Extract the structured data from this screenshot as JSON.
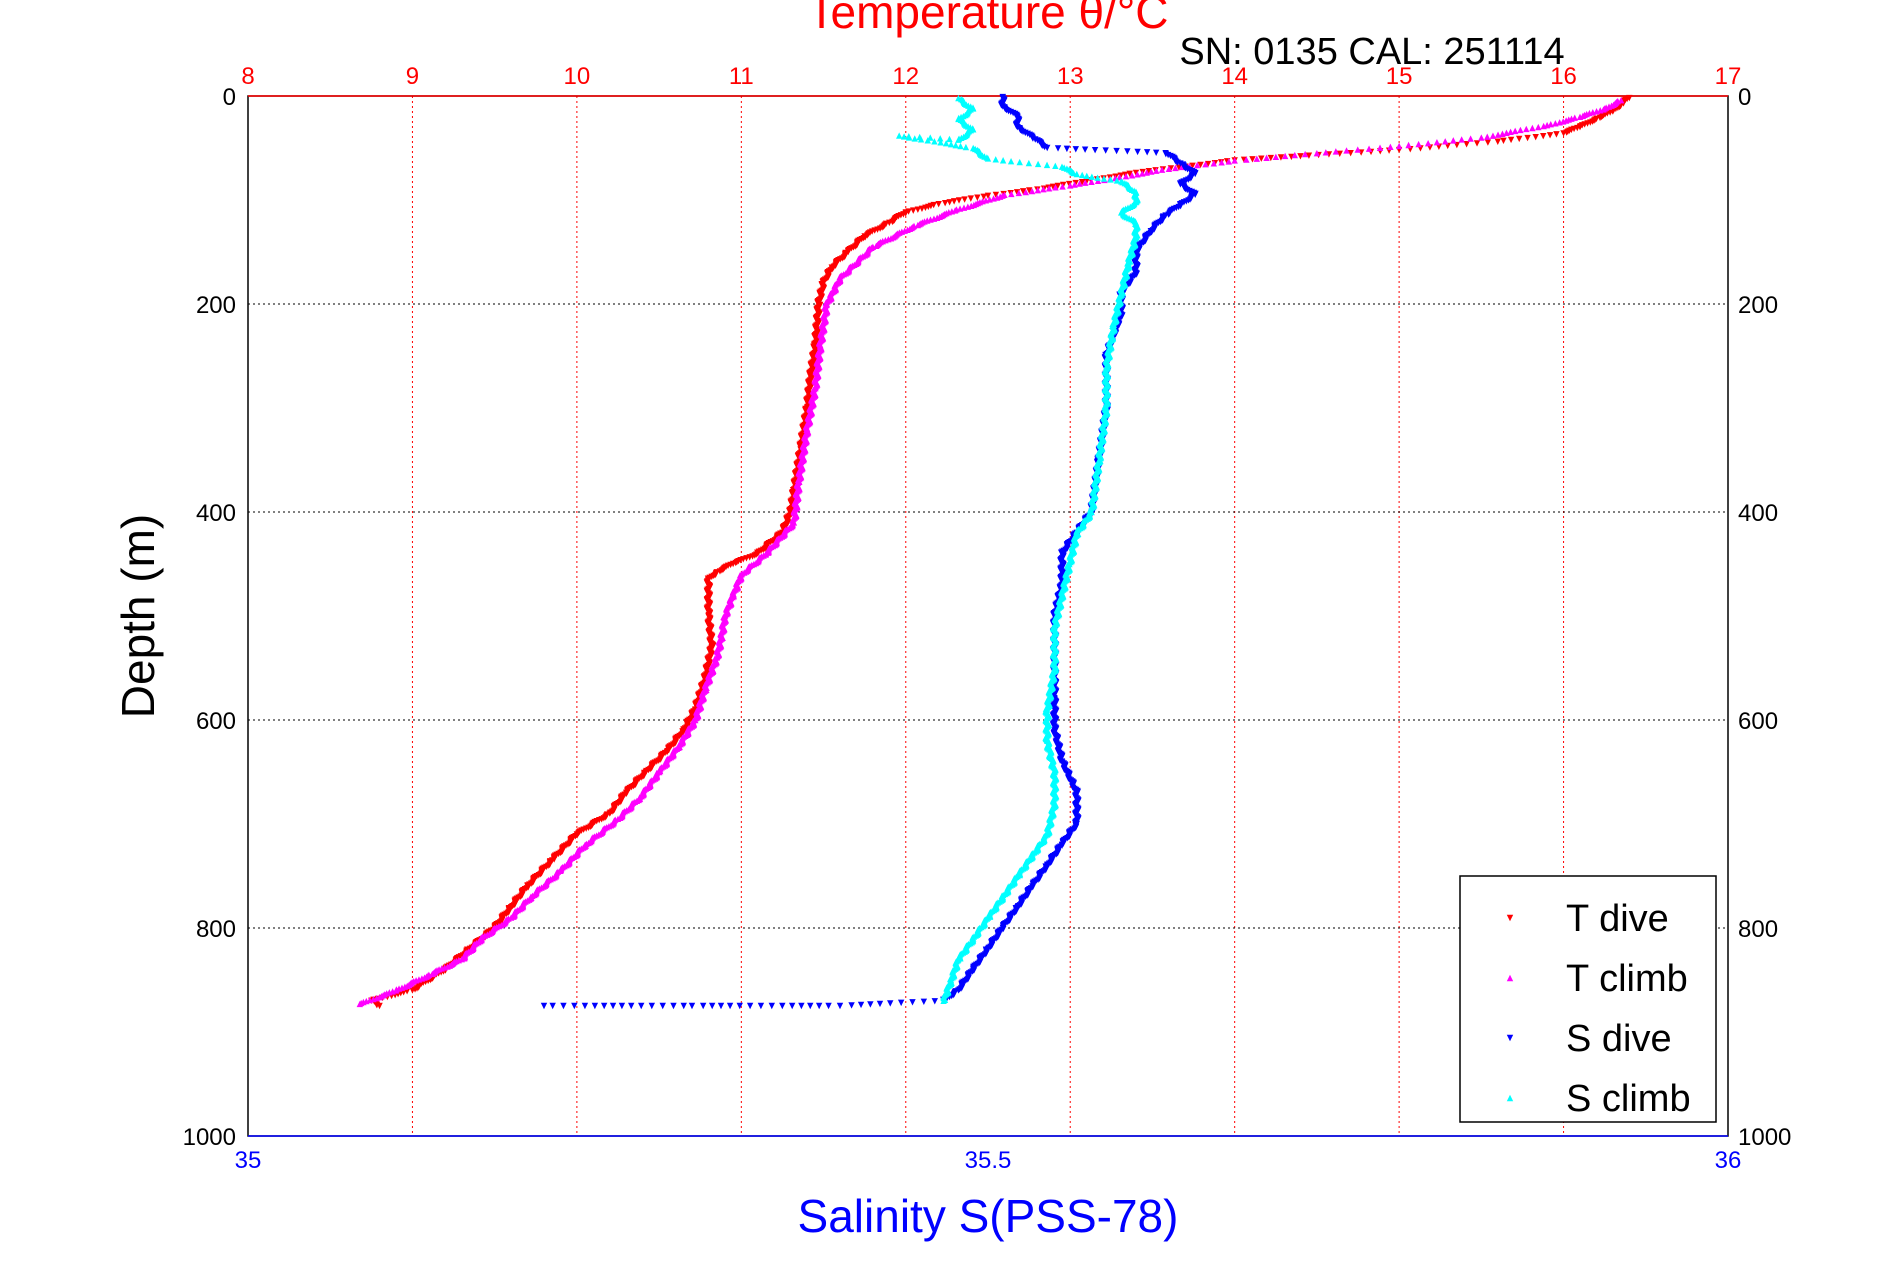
{
  "chart_data": {
    "type": "scatter",
    "title": "Temperature θ/°C",
    "subtitle": "SN: 0135  CAL: 251114",
    "ylabel": "Depth (m)",
    "xlabel": "Salinity S(PSS-78)",
    "ylim": [
      0,
      1000
    ],
    "y_inverted": true,
    "temperature_axis": {
      "position": "top",
      "range": [
        8,
        17
      ],
      "ticks": [
        "8",
        "9",
        "10",
        "11",
        "12",
        "13",
        "14",
        "15",
        "16",
        "17"
      ],
      "color": "#ff0000"
    },
    "salinity_axis": {
      "position": "bottom",
      "range": [
        35,
        36
      ],
      "ticks": [
        "35",
        "35.5",
        "36"
      ],
      "color": "#0000ff"
    },
    "depth_ticks": [
      "0",
      "200",
      "400",
      "600",
      "800",
      "1000"
    ],
    "grid": "vertical lines at temperature ticks, horizontal lines at depth ticks (dotted)",
    "legend_position": "bottom-right",
    "series": [
      {
        "name": "T dive",
        "axis": "temperature",
        "marker": "triangle-down",
        "color": "#ff0000",
        "points": [
          [
            16.4,
            2
          ],
          [
            16.35,
            8
          ],
          [
            16.3,
            15
          ],
          [
            16.2,
            22
          ],
          [
            16.1,
            30
          ],
          [
            16.0,
            36
          ],
          [
            15.6,
            44
          ],
          [
            15.0,
            52
          ],
          [
            14.4,
            58
          ],
          [
            14.0,
            62
          ],
          [
            13.7,
            68
          ],
          [
            13.4,
            74
          ],
          [
            13.1,
            82
          ],
          [
            12.8,
            90
          ],
          [
            12.5,
            96
          ],
          [
            12.2,
            104
          ],
          [
            12.0,
            112
          ],
          [
            11.9,
            122
          ],
          [
            11.75,
            135
          ],
          [
            11.65,
            150
          ],
          [
            11.55,
            165
          ],
          [
            11.5,
            180
          ],
          [
            11.47,
            200
          ],
          [
            11.45,
            240
          ],
          [
            11.42,
            270
          ],
          [
            11.4,
            300
          ],
          [
            11.36,
            340
          ],
          [
            11.32,
            380
          ],
          [
            11.3,
            400
          ],
          [
            11.25,
            420
          ],
          [
            11.1,
            440
          ],
          [
            10.95,
            450
          ],
          [
            10.85,
            458
          ],
          [
            10.8,
            465
          ],
          [
            10.8,
            500
          ],
          [
            10.82,
            530
          ],
          [
            10.78,
            560
          ],
          [
            10.72,
            590
          ],
          [
            10.65,
            610
          ],
          [
            10.55,
            630
          ],
          [
            10.42,
            650
          ],
          [
            10.3,
            670
          ],
          [
            10.2,
            690
          ],
          [
            10.0,
            710
          ],
          [
            9.85,
            735
          ],
          [
            9.7,
            760
          ],
          [
            9.6,
            780
          ],
          [
            9.5,
            800
          ],
          [
            9.35,
            820
          ],
          [
            9.2,
            840
          ],
          [
            9.0,
            860
          ],
          [
            8.75,
            870
          ],
          [
            8.8,
            875
          ]
        ]
      },
      {
        "name": "T climb",
        "axis": "temperature",
        "marker": "triangle-up",
        "color": "#ff00ff",
        "points": [
          [
            16.35,
            4
          ],
          [
            16.25,
            12
          ],
          [
            16.1,
            20
          ],
          [
            15.9,
            28
          ],
          [
            15.5,
            40
          ],
          [
            15.0,
            48
          ],
          [
            14.5,
            55
          ],
          [
            14.0,
            62
          ],
          [
            13.6,
            70
          ],
          [
            13.3,
            78
          ],
          [
            13.0,
            86
          ],
          [
            12.6,
            95
          ],
          [
            12.3,
            110
          ],
          [
            12.05,
            125
          ],
          [
            11.8,
            145
          ],
          [
            11.6,
            175
          ],
          [
            11.52,
            200
          ],
          [
            11.48,
            240
          ],
          [
            11.45,
            280
          ],
          [
            11.4,
            320
          ],
          [
            11.35,
            370
          ],
          [
            11.32,
            410
          ],
          [
            11.15,
            440
          ],
          [
            11.0,
            460
          ],
          [
            10.95,
            480
          ],
          [
            10.9,
            500
          ],
          [
            10.88,
            520
          ],
          [
            10.85,
            540
          ],
          [
            10.78,
            570
          ],
          [
            10.72,
            600
          ],
          [
            10.62,
            625
          ],
          [
            10.5,
            650
          ],
          [
            10.38,
            675
          ],
          [
            10.25,
            695
          ],
          [
            10.05,
            720
          ],
          [
            9.9,
            745
          ],
          [
            9.72,
            770
          ],
          [
            9.6,
            790
          ],
          [
            9.42,
            810
          ],
          [
            9.3,
            830
          ],
          [
            9.1,
            845
          ],
          [
            8.9,
            860
          ],
          [
            8.68,
            873
          ]
        ]
      },
      {
        "name": "S dive",
        "axis": "salinity",
        "marker": "triangle-down",
        "color": "#0000ff",
        "points": [
          [
            35.51,
            1
          ],
          [
            35.51,
            10
          ],
          [
            35.52,
            20
          ],
          [
            35.52,
            30
          ],
          [
            35.53,
            40
          ],
          [
            35.54,
            50
          ],
          [
            35.62,
            55
          ],
          [
            35.63,
            65
          ],
          [
            35.64,
            75
          ],
          [
            35.63,
            85
          ],
          [
            35.64,
            95
          ],
          [
            35.63,
            105
          ],
          [
            35.62,
            115
          ],
          [
            35.61,
            130
          ],
          [
            35.6,
            150
          ],
          [
            35.6,
            170
          ],
          [
            35.59,
            190
          ],
          [
            35.59,
            210
          ],
          [
            35.58,
            250
          ],
          [
            35.58,
            300
          ],
          [
            35.575,
            350
          ],
          [
            35.57,
            400
          ],
          [
            35.56,
            420
          ],
          [
            35.55,
            440
          ],
          [
            35.55,
            470
          ],
          [
            35.545,
            500
          ],
          [
            35.545,
            540
          ],
          [
            35.545,
            580
          ],
          [
            35.545,
            610
          ],
          [
            35.55,
            640
          ],
          [
            35.56,
            670
          ],
          [
            35.56,
            700
          ],
          [
            35.55,
            720
          ],
          [
            35.54,
            740
          ],
          [
            35.53,
            760
          ],
          [
            35.52,
            780
          ],
          [
            35.51,
            800
          ],
          [
            35.5,
            820
          ],
          [
            35.49,
            840
          ],
          [
            35.48,
            860
          ],
          [
            35.47,
            870
          ],
          [
            35.4,
            875
          ],
          [
            35.3,
            875
          ],
          [
            35.2,
            875
          ]
        ]
      },
      {
        "name": "S climb",
        "axis": "salinity",
        "marker": "triangle-up",
        "color": "#00ffff",
        "points": [
          [
            35.48,
            2
          ],
          [
            35.49,
            12
          ],
          [
            35.48,
            22
          ],
          [
            35.49,
            32
          ],
          [
            35.48,
            42
          ],
          [
            35.44,
            38
          ],
          [
            35.49,
            50
          ],
          [
            35.5,
            60
          ],
          [
            35.55,
            68
          ],
          [
            35.56,
            75
          ],
          [
            35.59,
            82
          ],
          [
            35.6,
            92
          ],
          [
            35.6,
            102
          ],
          [
            35.59,
            112
          ],
          [
            35.6,
            122
          ],
          [
            35.6,
            135
          ],
          [
            35.595,
            160
          ],
          [
            35.59,
            190
          ],
          [
            35.585,
            220
          ],
          [
            35.58,
            260
          ],
          [
            35.58,
            300
          ],
          [
            35.575,
            350
          ],
          [
            35.57,
            400
          ],
          [
            35.56,
            420
          ],
          [
            35.555,
            450
          ],
          [
            35.55,
            480
          ],
          [
            35.545,
            510
          ],
          [
            35.545,
            550
          ],
          [
            35.54,
            590
          ],
          [
            35.54,
            620
          ],
          [
            35.545,
            650
          ],
          [
            35.545,
            680
          ],
          [
            35.54,
            710
          ],
          [
            35.53,
            730
          ],
          [
            35.52,
            750
          ],
          [
            35.51,
            770
          ],
          [
            35.5,
            790
          ],
          [
            35.49,
            810
          ],
          [
            35.48,
            830
          ],
          [
            35.475,
            850
          ],
          [
            35.47,
            870
          ]
        ]
      }
    ]
  }
}
